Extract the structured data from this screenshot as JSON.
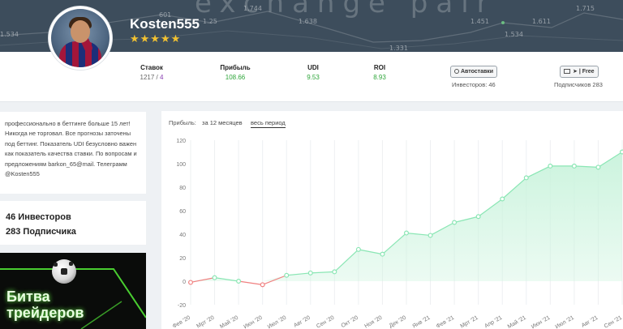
{
  "banner": {
    "word": "exchange pair",
    "numbers": [
      "601",
      "1.744",
      "1.638",
      "1.451",
      "1.534",
      "1.611",
      "1.715",
      "1.331",
      "1.534",
      "1.25"
    ]
  },
  "profile": {
    "username": "Kosten555",
    "stars": "★★★★★"
  },
  "stats": {
    "bets": {
      "label": "Ставок",
      "value_main": "1217",
      "value_sep": " / ",
      "value_alt": "4"
    },
    "profit": {
      "label": "Прибыль",
      "value": "108.66"
    },
    "udi": {
      "label": "UDI",
      "value": "9.53"
    },
    "roi": {
      "label": "ROI",
      "value": "8.93"
    }
  },
  "actions": {
    "autobets_label": "Автоставки",
    "investors_note": "Инвесторов: 46",
    "subscribe_label": "| Free",
    "subscribers_note": "Подписчиков 283"
  },
  "about": {
    "text": "профессионально в беттинге больше 15 лет! Никогда не торговал. Все прогнозы заточены под беттинг. Показатель UDI безусловно важен как показатель качества ставки. По вопросам и предложениям barkon_65@mail. Телеграмм @Kosten555"
  },
  "counts": {
    "investors": "46 Инвесторов",
    "subscribers": "283 Подписчика"
  },
  "promo": {
    "line1": "Битва",
    "line2": "трейдеров"
  },
  "chart_controls": {
    "label": "Прибыль:",
    "option_12m": "за 12 месяцев",
    "option_all": "весь период"
  },
  "colors": {
    "accent_green": "#2fa63b",
    "area_green": "#c9f3dc",
    "line_green": "#8ae6b4",
    "negative_red": "#f08080"
  },
  "chart_data": {
    "type": "area",
    "ylim": [
      -20,
      120
    ],
    "yticks": [
      -20,
      0,
      20,
      40,
      60,
      80,
      100,
      120
    ],
    "x": [
      "Фев '20",
      "Мрт '20",
      "Май '20",
      "Июн '20",
      "Июл '20",
      "Авг '20",
      "Сен '20",
      "Окт '20",
      "Ноя '20",
      "Дек '20",
      "Янв '21",
      "Фев '21",
      "Мрт '21",
      "Апр '21",
      "Май '21",
      "Июн '21",
      "Июл '21",
      "Авг '21",
      "Сен '21"
    ],
    "values": [
      -1,
      3,
      0,
      -3,
      5,
      7,
      8,
      27,
      23,
      41,
      39,
      50,
      55,
      70,
      88,
      98,
      98,
      97,
      110
    ],
    "grid": true
  }
}
